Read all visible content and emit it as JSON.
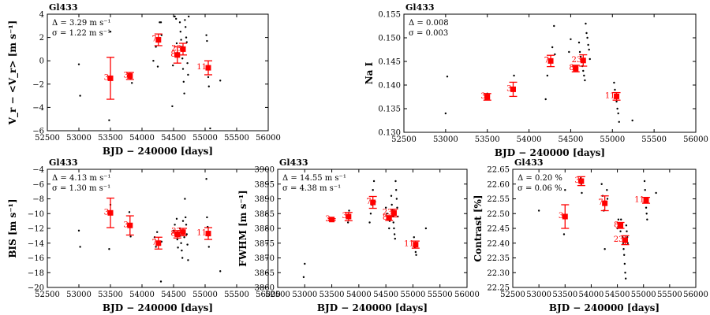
{
  "colors": {
    "binned": "#ff0000",
    "raw": "#000000",
    "axis": "#000000"
  },
  "chart_data": [
    {
      "type": "scatter",
      "key": "rv",
      "title": "Gl433",
      "xlabel": "BJD − 240000 [days]",
      "ylabel": "V_r − <V_r> [m s⁻¹]",
      "xlim": [
        52500,
        56000
      ],
      "ylim": [
        -6,
        4
      ],
      "xticks": [
        "52500",
        "53000",
        "53500",
        "54000",
        "54500",
        "55000",
        "55500",
        "56000"
      ],
      "yticks": [
        "−6",
        "−4",
        "−2",
        "0",
        "2",
        "4"
      ],
      "annotations": [
        "Δ = 3.29 m s⁻¹",
        "σ = 1.22 m s⁻¹"
      ],
      "raw": [
        [
          53000,
          -0.3
        ],
        [
          53020,
          -3.0
        ],
        [
          53480,
          -5.1
        ],
        [
          53500,
          2.5
        ],
        [
          53820,
          -1.5
        ],
        [
          53840,
          -1.9
        ],
        [
          54180,
          0.0
        ],
        [
          54220,
          1.2
        ],
        [
          54250,
          -0.5
        ],
        [
          54280,
          3.3
        ],
        [
          54300,
          3.3
        ],
        [
          54310,
          2.2
        ],
        [
          54480,
          -3.9
        ],
        [
          54490,
          -0.4
        ],
        [
          54520,
          3.8
        ],
        [
          54540,
          3.6
        ],
        [
          54550,
          1.5
        ],
        [
          54560,
          0.7
        ],
        [
          54570,
          0.4
        ],
        [
          54600,
          3.3
        ],
        [
          54610,
          2.5
        ],
        [
          54620,
          1.8
        ],
        [
          54630,
          1.2
        ],
        [
          54640,
          0.2
        ],
        [
          54650,
          -0.7
        ],
        [
          54660,
          -1.8
        ],
        [
          54670,
          -2.8
        ],
        [
          54680,
          3.5
        ],
        [
          54690,
          2.9
        ],
        [
          54700,
          2.0
        ],
        [
          54710,
          1.6
        ],
        [
          54720,
          -0.2
        ],
        [
          54730,
          -1.2
        ],
        [
          54740,
          3.8
        ],
        [
          55020,
          2.2
        ],
        [
          55030,
          1.7
        ],
        [
          55040,
          -0.5
        ],
        [
          55050,
          -1.4
        ],
        [
          55060,
          -2.2
        ],
        [
          55080,
          -5.8
        ],
        [
          55240,
          -1.7
        ]
      ],
      "binned": [
        {
          "x": 53500,
          "y": -1.5,
          "err": 1.8,
          "label": "3"
        },
        {
          "x": 53810,
          "y": -1.3,
          "err": 0.3,
          "label": "3"
        },
        {
          "x": 54260,
          "y": 1.8,
          "err": 0.5,
          "label": "7"
        },
        {
          "x": 54560,
          "y": 0.5,
          "err": 0.7,
          "label": "8"
        },
        {
          "x": 54650,
          "y": 1.0,
          "err": 0.5,
          "label": "23"
        },
        {
          "x": 55050,
          "y": -0.6,
          "err": 0.6,
          "label": "11"
        }
      ]
    },
    {
      "type": "scatter",
      "key": "na",
      "title": "Gl433",
      "xlabel": "BJD − 240000 [days]",
      "ylabel": "Na I",
      "xlim": [
        52500,
        56000
      ],
      "ylim": [
        0.13,
        0.155
      ],
      "xticks": [
        "52500",
        "53000",
        "53500",
        "54000",
        "54500",
        "55000",
        "55500",
        "56000"
      ],
      "yticks": [
        "0.130",
        "0.135",
        "0.140",
        "0.145",
        "0.150",
        "0.155"
      ],
      "annotations": [
        "Δ = 0.008",
        "σ = 0.003"
      ],
      "raw": [
        [
          53000,
          0.134
        ],
        [
          53020,
          0.1418
        ],
        [
          53480,
          0.137
        ],
        [
          53500,
          0.1382
        ],
        [
          53510,
          0.1378
        ],
        [
          53800,
          0.1388
        ],
        [
          53810,
          0.1393
        ],
        [
          53820,
          0.142
        ],
        [
          54200,
          0.137
        ],
        [
          54220,
          0.142
        ],
        [
          54260,
          0.145
        ],
        [
          54280,
          0.148
        ],
        [
          54300,
          0.1525
        ],
        [
          54310,
          0.1465
        ],
        [
          54480,
          0.147
        ],
        [
          54500,
          0.1497
        ],
        [
          54550,
          0.1438
        ],
        [
          54560,
          0.1435
        ],
        [
          54600,
          0.149
        ],
        [
          54610,
          0.147
        ],
        [
          54620,
          0.146
        ],
        [
          54630,
          0.145
        ],
        [
          54640,
          0.144
        ],
        [
          54650,
          0.143
        ],
        [
          54660,
          0.142
        ],
        [
          54670,
          0.141
        ],
        [
          54680,
          0.153
        ],
        [
          54690,
          0.151
        ],
        [
          54700,
          0.15
        ],
        [
          54710,
          0.1485
        ],
        [
          54720,
          0.1475
        ],
        [
          54730,
          0.1455
        ],
        [
          55020,
          0.1405
        ],
        [
          55030,
          0.139
        ],
        [
          55040,
          0.138
        ],
        [
          55050,
          0.1365
        ],
        [
          55060,
          0.135
        ],
        [
          55070,
          0.134
        ],
        [
          55080,
          0.1322
        ],
        [
          55240,
          0.1325
        ]
      ],
      "binned": [
        {
          "x": 53500,
          "y": 0.1375,
          "err": 0.0007,
          "label": "3"
        },
        {
          "x": 53810,
          "y": 0.1391,
          "err": 0.0015,
          "label": "3"
        },
        {
          "x": 54260,
          "y": 0.1451,
          "err": 0.0012,
          "label": "7"
        },
        {
          "x": 54560,
          "y": 0.1435,
          "err": 0.0007,
          "label": "8"
        },
        {
          "x": 54650,
          "y": 0.1452,
          "err": 0.0012,
          "label": "23"
        },
        {
          "x": 55050,
          "y": 0.1376,
          "err": 0.0008,
          "label": "11"
        }
      ]
    },
    {
      "type": "scatter",
      "key": "bis",
      "title": "Gl433",
      "xlabel": "BJD − 240000 [days]",
      "ylabel": "BIS [m s⁻¹]",
      "xlim": [
        52500,
        56000
      ],
      "ylim": [
        -20,
        -4
      ],
      "xticks": [
        "52500",
        "53000",
        "53500",
        "54000",
        "54500",
        "55000",
        "55500",
        "56000"
      ],
      "yticks": [
        "−20",
        "−18",
        "−16",
        "−14",
        "−12",
        "−10",
        "−8",
        "−6",
        "−4"
      ],
      "annotations": [
        "Δ = 4.13 m s⁻¹",
        "σ = 1.30 m s⁻¹"
      ],
      "raw": [
        [
          53000,
          -12.3
        ],
        [
          53020,
          -14.5
        ],
        [
          53480,
          -14.8
        ],
        [
          53500,
          -8.8
        ],
        [
          53510,
          -10.0
        ],
        [
          53800,
          -9.8
        ],
        [
          53810,
          -11.5
        ],
        [
          53820,
          -13.1
        ],
        [
          54200,
          -13.2
        ],
        [
          54220,
          -14.5
        ],
        [
          54240,
          -12.5
        ],
        [
          54300,
          -19.2
        ],
        [
          54310,
          -13.8
        ],
        [
          54500,
          -12.3
        ],
        [
          54520,
          -11.5
        ],
        [
          54550,
          -10.7
        ],
        [
          54560,
          -13.5
        ],
        [
          54570,
          -14.6
        ],
        [
          54600,
          -12.0
        ],
        [
          54610,
          -13.0
        ],
        [
          54620,
          -14.0
        ],
        [
          54630,
          -15.0
        ],
        [
          54640,
          -16.0
        ],
        [
          54650,
          -11.0
        ],
        [
          54660,
          -12.5
        ],
        [
          54670,
          -13.2
        ],
        [
          54680,
          -8.0
        ],
        [
          54690,
          -10.5
        ],
        [
          54700,
          -11.5
        ],
        [
          54710,
          -12.8
        ],
        [
          54720,
          -14.2
        ],
        [
          54730,
          -16.3
        ],
        [
          55020,
          -5.3
        ],
        [
          55030,
          -10.5
        ],
        [
          55040,
          -11.8
        ],
        [
          55050,
          -13.0
        ],
        [
          55060,
          -14.5
        ],
        [
          55240,
          -17.8
        ]
      ],
      "binned": [
        {
          "x": 53500,
          "y": -9.9,
          "err": 2.0,
          "label": "3"
        },
        {
          "x": 53810,
          "y": -11.6,
          "err": 1.3,
          "label": "3"
        },
        {
          "x": 54260,
          "y": -14.0,
          "err": 0.8,
          "label": "7"
        },
        {
          "x": 54560,
          "y": -12.8,
          "err": 0.5,
          "label": "8"
        },
        {
          "x": 54650,
          "y": -12.5,
          "err": 0.5,
          "label": "23"
        },
        {
          "x": 55050,
          "y": -12.7,
          "err": 0.8,
          "label": "11"
        }
      ]
    },
    {
      "type": "scatter",
      "key": "fwhm",
      "title": "Gl433",
      "xlabel": "BJD − 240000 [days]",
      "ylabel": "FWHM [m s⁻¹]",
      "xlim": [
        52500,
        56000
      ],
      "ylim": [
        3860,
        3900
      ],
      "xticks": [
        "52500",
        "53000",
        "53500",
        "54000",
        "54500",
        "55000",
        "55500",
        "56000"
      ],
      "yticks": [
        "3860",
        "3865",
        "3870",
        "3875",
        "3880",
        "3885",
        "3890",
        "3895",
        "3900"
      ],
      "annotations": [
        "Δ = 14.55 m s⁻¹",
        "σ = 4.38 m s⁻¹"
      ],
      "raw": [
        [
          52980,
          3863.5
        ],
        [
          53000,
          3868.0
        ],
        [
          53480,
          3882.5
        ],
        [
          53500,
          3883.0
        ],
        [
          53510,
          3882.8
        ],
        [
          53800,
          3882.0
        ],
        [
          53810,
          3884.0
        ],
        [
          53820,
          3886.0
        ],
        [
          54200,
          3882.0
        ],
        [
          54220,
          3885.0
        ],
        [
          54240,
          3888.0
        ],
        [
          54260,
          3893.0
        ],
        [
          54280,
          3896.0
        ],
        [
          54300,
          3889.0
        ],
        [
          54500,
          3887.0
        ],
        [
          54520,
          3885.0
        ],
        [
          54550,
          3883.0
        ],
        [
          54560,
          3880.0
        ],
        [
          54570,
          3882.5
        ],
        [
          54600,
          3891.0
        ],
        [
          54610,
          3888.0
        ],
        [
          54620,
          3886.0
        ],
        [
          54630,
          3884.0
        ],
        [
          54640,
          3882.0
        ],
        [
          54650,
          3880.0
        ],
        [
          54660,
          3878.0
        ],
        [
          54670,
          3876.5
        ],
        [
          54680,
          3896.0
        ],
        [
          54690,
          3893.0
        ],
        [
          54700,
          3890.0
        ],
        [
          54710,
          3887.0
        ],
        [
          54720,
          3884.0
        ],
        [
          55020,
          3877.0
        ],
        [
          55030,
          3875.0
        ],
        [
          55040,
          3873.5
        ],
        [
          55050,
          3872.0
        ],
        [
          55060,
          3871.0
        ],
        [
          55240,
          3880.0
        ]
      ],
      "binned": [
        {
          "x": 53500,
          "y": 3883.0,
          "err": 0.3,
          "label": "3"
        },
        {
          "x": 53810,
          "y": 3884.0,
          "err": 1.4,
          "label": "3"
        },
        {
          "x": 54260,
          "y": 3888.8,
          "err": 2.0,
          "label": "7"
        },
        {
          "x": 54560,
          "y": 3883.5,
          "err": 0.8,
          "label": "8"
        },
        {
          "x": 54650,
          "y": 3885.2,
          "err": 1.3,
          "label": "23"
        },
        {
          "x": 55050,
          "y": 3874.5,
          "err": 1.2,
          "label": "11"
        }
      ]
    },
    {
      "type": "scatter",
      "key": "contrast",
      "title": "Gl433",
      "xlabel": "BJD − 240000 [days]",
      "ylabel": "Contrast [%]",
      "xlim": [
        52500,
        56000
      ],
      "ylim": [
        22.25,
        22.65
      ],
      "xticks": [
        "52500",
        "53000",
        "53500",
        "54000",
        "54500",
        "55000",
        "55500",
        "56000"
      ],
      "yticks": [
        "22.25",
        "22.30",
        "22.35",
        "22.40",
        "22.45",
        "22.50",
        "22.55",
        "22.60",
        "22.65"
      ],
      "annotations": [
        "Δ = 0.20 %",
        "σ = 0.06 %"
      ],
      "raw": [
        [
          53000,
          22.51
        ],
        [
          53480,
          22.43
        ],
        [
          53500,
          22.58
        ],
        [
          53800,
          22.62
        ],
        [
          53810,
          22.6
        ],
        [
          53820,
          22.57
        ],
        [
          54200,
          22.6
        ],
        [
          54220,
          22.56
        ],
        [
          54240,
          22.51
        ],
        [
          54260,
          22.38
        ],
        [
          54300,
          22.58
        ],
        [
          54310,
          22.55
        ],
        [
          54500,
          22.45
        ],
        [
          54520,
          22.48
        ],
        [
          54550,
          22.46
        ],
        [
          54560,
          22.44
        ],
        [
          54570,
          22.48
        ],
        [
          54600,
          22.42
        ],
        [
          54610,
          22.4
        ],
        [
          54620,
          22.38
        ],
        [
          54630,
          22.36
        ],
        [
          54640,
          22.33
        ],
        [
          54650,
          22.3
        ],
        [
          54660,
          22.28
        ],
        [
          54670,
          22.46
        ],
        [
          54680,
          22.44
        ],
        [
          54690,
          22.42
        ],
        [
          54700,
          22.4
        ],
        [
          55020,
          22.61
        ],
        [
          55030,
          22.58
        ],
        [
          55040,
          22.55
        ],
        [
          55050,
          22.52
        ],
        [
          55060,
          22.5
        ],
        [
          55070,
          22.48
        ],
        [
          55240,
          22.57
        ]
      ],
      "binned": [
        {
          "x": 53500,
          "y": 22.49,
          "err": 0.04,
          "label": "3"
        },
        {
          "x": 53810,
          "y": 22.61,
          "err": 0.015,
          "label": "3"
        },
        {
          "x": 54260,
          "y": 22.535,
          "err": 0.025,
          "label": "7"
        },
        {
          "x": 54560,
          "y": 22.46,
          "err": 0.01,
          "label": "8"
        },
        {
          "x": 54650,
          "y": 22.41,
          "err": 0.015,
          "label": "23"
        },
        {
          "x": 55050,
          "y": 22.545,
          "err": 0.01,
          "label": "11"
        }
      ]
    }
  ]
}
